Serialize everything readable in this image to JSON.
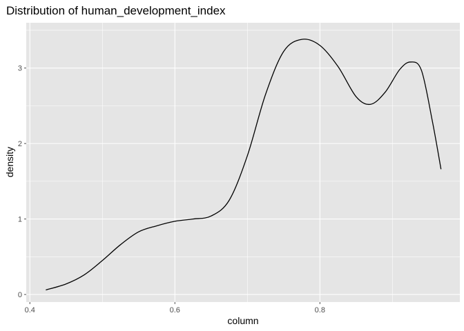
{
  "chart_data": {
    "type": "line",
    "title": "Distribution of human_development_index",
    "xlabel": "column",
    "ylabel": "density",
    "xlim": [
      0.395,
      0.993
    ],
    "ylim": [
      -0.1,
      3.6
    ],
    "x_ticks": [
      0.4,
      0.6,
      0.8
    ],
    "x_tick_labels": [
      "0.4",
      "0.6",
      "0.8"
    ],
    "x_minor_ticks": [
      0.5,
      0.7,
      0.9
    ],
    "y_ticks": [
      0,
      1,
      2,
      3
    ],
    "y_tick_labels": [
      "0",
      "1",
      "2",
      "3"
    ],
    "y_minor_ticks": [
      0.5,
      1.5,
      2.5,
      3.5
    ],
    "grid": true,
    "legend": "none",
    "colors": {
      "panel": "#e5e5e5",
      "grid": "#ffffff",
      "line": "#000000",
      "tick": "#4d4d4d"
    },
    "series": [
      {
        "x": [
          0.422,
          0.45,
          0.475,
          0.5,
          0.525,
          0.55,
          0.575,
          0.6,
          0.625,
          0.65,
          0.675,
          0.7,
          0.725,
          0.75,
          0.775,
          0.8,
          0.825,
          0.85,
          0.87,
          0.89,
          0.91,
          0.925,
          0.94,
          0.955,
          0.967
        ],
        "y": [
          0.06,
          0.14,
          0.26,
          0.45,
          0.66,
          0.83,
          0.91,
          0.97,
          1.0,
          1.04,
          1.25,
          1.84,
          2.65,
          3.22,
          3.38,
          3.3,
          3.02,
          2.62,
          2.52,
          2.68,
          2.98,
          3.08,
          2.97,
          2.3,
          1.66
        ]
      }
    ]
  }
}
